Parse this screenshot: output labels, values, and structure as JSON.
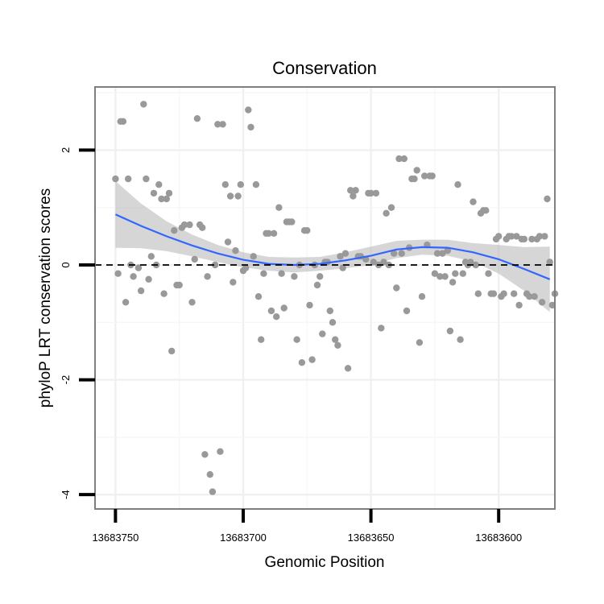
{
  "chart_data": {
    "type": "scatter",
    "title": "Conservation",
    "xlabel": "Genomic Position",
    "ylabel": "phyloP LRT conservation scores",
    "x_reversed": true,
    "xlim": [
      13683758,
      13683578
    ],
    "ylim": [
      -4.25,
      3.1
    ],
    "x_ticks": [
      13683750,
      13683700,
      13683650,
      13683600
    ],
    "x_tick_labels": [
      "13683750",
      "13683700",
      "13683650",
      "13683600"
    ],
    "y_ticks": [
      -4,
      -2,
      0,
      2
    ],
    "y_tick_labels": [
      "-4",
      "-2",
      "0",
      "2"
    ],
    "grid": true,
    "reference_line": {
      "y": 0,
      "style": "dashed"
    },
    "colors": {
      "points": "#999999",
      "smooth": "#3366FF",
      "band": "#bbbbbb",
      "panel_border": "#7f7f7f",
      "grid": "#f0f0f0"
    },
    "points": [
      [
        13683750,
        1.5
      ],
      [
        13683749,
        -0.15
      ],
      [
        13683748,
        2.5
      ],
      [
        13683747,
        2.5
      ],
      [
        13683746,
        -0.65
      ],
      [
        13683745,
        1.5
      ],
      [
        13683744,
        0.0
      ],
      [
        13683743,
        -0.2
      ],
      [
        13683741,
        -0.05
      ],
      [
        13683740,
        -0.45
      ],
      [
        13683739,
        2.8
      ],
      [
        13683738,
        1.5
      ],
      [
        13683737,
        -0.25
      ],
      [
        13683736,
        0.15
      ],
      [
        13683735,
        1.25
      ],
      [
        13683734,
        0.0
      ],
      [
        13683733,
        1.4
      ],
      [
        13683732,
        1.15
      ],
      [
        13683731,
        -0.5
      ],
      [
        13683730,
        1.15
      ],
      [
        13683729,
        1.25
      ],
      [
        13683728,
        -1.5
      ],
      [
        13683727,
        0.6
      ],
      [
        13683726,
        -0.35
      ],
      [
        13683725,
        -0.35
      ],
      [
        13683724,
        0.65
      ],
      [
        13683723,
        0.7
      ],
      [
        13683721,
        0.7
      ],
      [
        13683720,
        -0.65
      ],
      [
        13683719,
        0.1
      ],
      [
        13683718,
        2.55
      ],
      [
        13683717,
        0.7
      ],
      [
        13683716,
        0.65
      ],
      [
        13683715,
        -3.3
      ],
      [
        13683714,
        -0.2
      ],
      [
        13683713,
        -3.65
      ],
      [
        13683712,
        -3.95
      ],
      [
        13683711,
        0.0
      ],
      [
        13683710,
        2.45
      ],
      [
        13683709,
        -3.25
      ],
      [
        13683708,
        2.45
      ],
      [
        13683707,
        1.4
      ],
      [
        13683706,
        0.4
      ],
      [
        13683705,
        1.2
      ],
      [
        13683704,
        -0.3
      ],
      [
        13683703,
        0.25
      ],
      [
        13683702,
        1.2
      ],
      [
        13683701,
        1.4
      ],
      [
        13683700,
        -0.1
      ],
      [
        13683699,
        -0.05
      ],
      [
        13683698,
        2.7
      ],
      [
        13683697,
        2.4
      ],
      [
        13683696,
        0.15
      ],
      [
        13683695,
        1.4
      ],
      [
        13683694,
        -0.55
      ],
      [
        13683693,
        -1.3
      ],
      [
        13683692,
        -0.15
      ],
      [
        13683691,
        0.55
      ],
      [
        13683690,
        0.55
      ],
      [
        13683689,
        -0.8
      ],
      [
        13683688,
        0.55
      ],
      [
        13683687,
        -0.9
      ],
      [
        13683686,
        1.0
      ],
      [
        13683685,
        -0.15
      ],
      [
        13683684,
        -0.75
      ],
      [
        13683683,
        0.75
      ],
      [
        13683682,
        0.75
      ],
      [
        13683681,
        0.75
      ],
      [
        13683680,
        -0.2
      ],
      [
        13683679,
        -1.3
      ],
      [
        13683678,
        0.0
      ],
      [
        13683677,
        -1.7
      ],
      [
        13683676,
        0.6
      ],
      [
        13683675,
        0.6
      ],
      [
        13683674,
        -0.7
      ],
      [
        13683673,
        -1.65
      ],
      [
        13683672,
        0.0
      ],
      [
        13683671,
        -0.35
      ],
      [
        13683670,
        -0.2
      ],
      [
        13683669,
        -1.2
      ],
      [
        13683668,
        0.05
      ],
      [
        13683667,
        0.05
      ],
      [
        13683666,
        -0.8
      ],
      [
        13683665,
        -1.0
      ],
      [
        13683664,
        -1.3
      ],
      [
        13683663,
        -1.4
      ],
      [
        13683662,
        0.15
      ],
      [
        13683661,
        -0.05
      ],
      [
        13683660,
        0.2
      ],
      [
        13683659,
        -1.8
      ],
      [
        13683658,
        1.3
      ],
      [
        13683657,
        1.2
      ],
      [
        13683656,
        1.3
      ],
      [
        13683655,
        0.15
      ],
      [
        13683654,
        0.15
      ],
      [
        13683652,
        0.1
      ],
      [
        13683651,
        1.25
      ],
      [
        13683650,
        1.25
      ],
      [
        13683649,
        0.05
      ],
      [
        13683648,
        1.25
      ],
      [
        13683647,
        0.0
      ],
      [
        13683646,
        -1.1
      ],
      [
        13683645,
        0.05
      ],
      [
        13683644,
        0.9
      ],
      [
        13683643,
        0.0
      ],
      [
        13683642,
        1.0
      ],
      [
        13683641,
        0.2
      ],
      [
        13683640,
        -0.4
      ],
      [
        13683639,
        1.85
      ],
      [
        13683638,
        0.2
      ],
      [
        13683637,
        1.85
      ],
      [
        13683636,
        -0.8
      ],
      [
        13683635,
        0.3
      ],
      [
        13683634,
        1.5
      ],
      [
        13683633,
        1.5
      ],
      [
        13683632,
        1.65
      ],
      [
        13683631,
        -1.35
      ],
      [
        13683630,
        -0.55
      ],
      [
        13683629,
        1.55
      ],
      [
        13683628,
        0.35
      ],
      [
        13683627,
        1.55
      ],
      [
        13683626,
        1.55
      ],
      [
        13683625,
        -0.15
      ],
      [
        13683624,
        0.2
      ],
      [
        13683623,
        -0.2
      ],
      [
        13683622,
        0.2
      ],
      [
        13683621,
        -0.2
      ],
      [
        13683620,
        0.25
      ],
      [
        13683619,
        -1.15
      ],
      [
        13683618,
        -0.3
      ],
      [
        13683617,
        -0.15
      ],
      [
        13683616,
        1.4
      ],
      [
        13683615,
        -1.3
      ],
      [
        13683614,
        -0.15
      ],
      [
        13683613,
        0.05
      ],
      [
        13683612,
        0.0
      ],
      [
        13683611,
        0.05
      ],
      [
        13683610,
        1.1
      ],
      [
        13683609,
        0.0
      ],
      [
        13683608,
        -0.5
      ],
      [
        13683607,
        0.9
      ],
      [
        13683606,
        0.95
      ],
      [
        13683605,
        0.95
      ],
      [
        13683604,
        -0.15
      ],
      [
        13683603,
        -0.5
      ],
      [
        13683602,
        -0.5
      ],
      [
        13683601,
        0.45
      ],
      [
        13683600,
        0.5
      ],
      [
        13683599,
        -0.55
      ],
      [
        13683598,
        -0.5
      ],
      [
        13683597,
        0.45
      ],
      [
        13683596,
        0.5
      ],
      [
        13683595,
        0.5
      ],
      [
        13683594,
        -0.5
      ],
      [
        13683593,
        0.5
      ],
      [
        13683592,
        -0.7
      ],
      [
        13683591,
        0.45
      ],
      [
        13683590,
        0.45
      ],
      [
        13683589,
        -0.5
      ],
      [
        13683588,
        -0.55
      ],
      [
        13683587,
        0.45
      ],
      [
        13683586,
        -0.55
      ],
      [
        13683585,
        0.45
      ],
      [
        13683584,
        0.5
      ],
      [
        13683583,
        -0.65
      ],
      [
        13683582,
        0.5
      ],
      [
        13683581,
        1.15
      ],
      [
        13683580,
        0.05
      ],
      [
        13683579,
        -0.7
      ],
      [
        13683578,
        -0.5
      ]
    ],
    "smooth": {
      "x": [
        13683750,
        13683740,
        13683730,
        13683720,
        13683710,
        13683700,
        13683690,
        13683680,
        13683670,
        13683660,
        13683650,
        13683640,
        13683630,
        13683620,
        13683610,
        13683600,
        13683590,
        13683580
      ],
      "y": [
        0.88,
        0.68,
        0.5,
        0.34,
        0.2,
        0.09,
        0.02,
        0.0,
        0.02,
        0.08,
        0.16,
        0.27,
        0.31,
        0.3,
        0.22,
        0.1,
        -0.07,
        -0.25
      ],
      "lower": [
        0.3,
        0.29,
        0.24,
        0.15,
        0.05,
        -0.04,
        -0.1,
        -0.13,
        -0.1,
        -0.06,
        0.0,
        0.12,
        0.18,
        0.16,
        0.06,
        -0.15,
        -0.45,
        -0.82
      ],
      "upper": [
        1.46,
        1.07,
        0.76,
        0.53,
        0.35,
        0.22,
        0.14,
        0.13,
        0.14,
        0.22,
        0.32,
        0.42,
        0.44,
        0.44,
        0.38,
        0.35,
        0.31,
        0.32
      ]
    }
  }
}
